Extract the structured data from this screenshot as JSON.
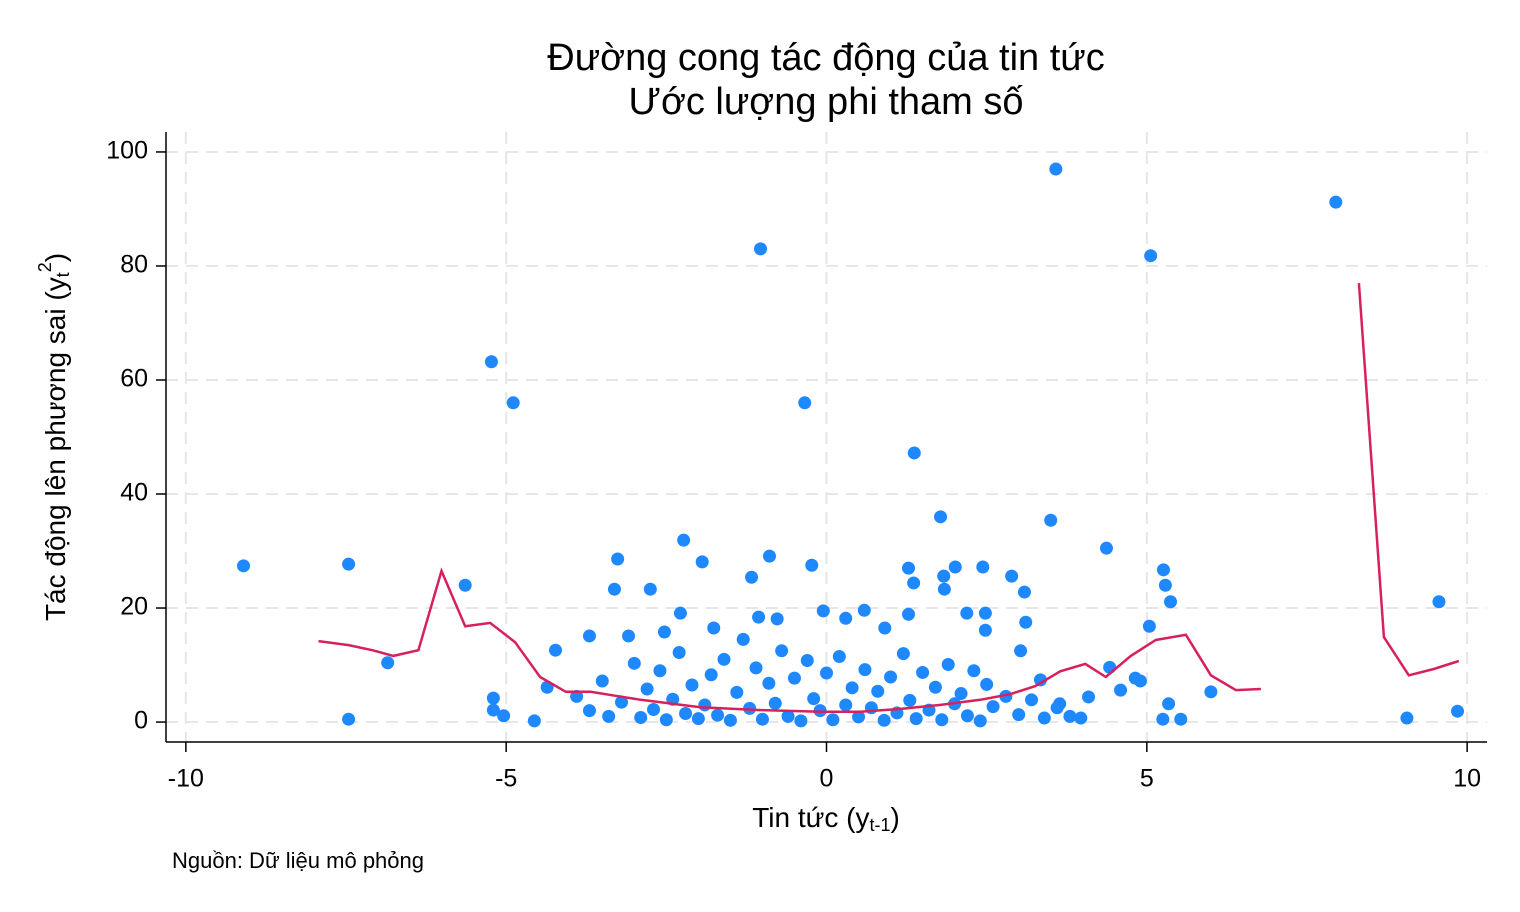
{
  "chart_data": {
    "type": "scatter",
    "title": "Đường cong tác động của tin tức",
    "subtitle": "Ước lượng phi tham số",
    "xlabel": {
      "text": "Tin tức (y",
      "sub": "t-1",
      "end": ")"
    },
    "ylabel": {
      "text": "Tác động lên phương sai (y",
      "sub": "t",
      "sup": "2",
      "end": ")"
    },
    "note": "Nguồn: Dữ liệu mô phỏng",
    "xlim": [
      -10.31,
      10.31
    ],
    "xticks": [
      -10,
      -5,
      0,
      5,
      10
    ],
    "ylim": [
      -3.5,
      103.5
    ],
    "yticks": [
      0,
      20,
      40,
      60,
      80,
      100
    ],
    "grid": true,
    "series": [
      {
        "type": "scatter",
        "color": "#1e88ff",
        "x": [
          -9.1,
          -7.46,
          -7.46,
          -6.85,
          -5.64,
          -5.23,
          -4.89,
          -5.2,
          -5.2,
          -5.04,
          -4.56,
          -4.36,
          -4.23,
          -3.26,
          -3.31,
          -3.7,
          -3.09,
          -2.75,
          -2.53,
          -2.23,
          -1.94,
          -2.28,
          -1.76,
          -1.03,
          -0.89,
          -1.17,
          -1.06,
          -0.77,
          -0.23,
          -0.34,
          -0.05,
          0.3,
          0.59,
          0.91,
          1.37,
          1.28,
          1.36,
          1.28,
          1.78,
          1.83,
          2.01,
          1.84,
          2.19,
          2.44,
          2.48,
          2.48,
          2.89,
          3.09,
          3.11,
          3.03,
          3.58,
          3.5,
          3.34,
          3.64,
          4.37,
          4.42,
          4.09,
          3.97,
          5.06,
          5.26,
          5.29,
          5.37,
          5.04,
          4.9,
          5.34,
          5.25,
          5.53,
          6.0,
          7.95,
          9.06,
          9.56,
          9.85,
          4.82,
          4.59,
          -3.9,
          -3.7,
          -3.5,
          -3.4,
          -3.2,
          -3.0,
          -2.9,
          -2.8,
          -2.7,
          -2.6,
          -2.5,
          -2.4,
          -2.3,
          -2.2,
          -2.1,
          -2.0,
          -1.9,
          -1.8,
          -1.7,
          -1.6,
          -1.5,
          -1.4,
          -1.3,
          -1.2,
          -1.1,
          -1.0,
          -0.9,
          -0.8,
          -0.7,
          -0.6,
          -0.5,
          -0.4,
          -0.3,
          -0.2,
          -0.1,
          0.0,
          0.1,
          0.2,
          0.3,
          0.4,
          0.5,
          0.6,
          0.7,
          0.8,
          0.9,
          1.0,
          1.1,
          1.2,
          1.3,
          1.4,
          1.5,
          1.6,
          1.7,
          1.8,
          1.9,
          2.0,
          2.1,
          2.2,
          2.3,
          2.4,
          2.5,
          2.6,
          2.8,
          3.0,
          3.2,
          3.4,
          3.6,
          3.8
        ],
        "values": [
          27.4,
          27.7,
          0.5,
          10.4,
          24.0,
          63.2,
          56.0,
          4.2,
          2.1,
          1.1,
          0.2,
          6.1,
          12.6,
          28.6,
          23.3,
          15.1,
          15.1,
          23.3,
          15.8,
          31.9,
          28.1,
          19.1,
          16.5,
          83.0,
          29.1,
          25.4,
          18.4,
          18.1,
          27.5,
          56.0,
          19.5,
          18.2,
          19.6,
          16.5,
          47.2,
          27.0,
          24.4,
          18.9,
          36.0,
          25.6,
          27.2,
          23.3,
          19.1,
          27.2,
          19.1,
          16.1,
          25.6,
          22.8,
          17.5,
          12.5,
          97.0,
          35.4,
          7.4,
          3.2,
          30.5,
          9.6,
          4.4,
          0.7,
          81.8,
          26.7,
          24.0,
          21.1,
          16.8,
          7.2,
          3.2,
          0.5,
          0.5,
          5.3,
          91.2,
          0.7,
          21.1,
          1.9,
          7.7,
          5.6,
          4.5,
          2.0,
          7.2,
          1.0,
          3.5,
          10.3,
          0.8,
          5.8,
          2.2,
          9.0,
          0.4,
          4.0,
          12.2,
          1.5,
          6.5,
          0.6,
          3.0,
          8.3,
          1.2,
          11.0,
          0.3,
          5.2,
          14.5,
          2.4,
          9.5,
          0.5,
          6.8,
          3.3,
          12.5,
          1.0,
          7.7,
          0.2,
          10.8,
          4.1,
          2.0,
          8.6,
          0.4,
          11.5,
          3.0,
          6.0,
          0.9,
          9.2,
          2.5,
          5.4,
          0.3,
          7.9,
          1.6,
          12.0,
          3.8,
          0.6,
          8.7,
          2.1,
          6.1,
          0.4,
          10.1,
          3.2,
          5.0,
          1.1,
          9.0,
          0.2,
          6.6,
          2.7,
          4.5,
          1.3,
          3.9,
          0.7,
          2.5,
          1.0
        ]
      },
      {
        "type": "line",
        "color": "#d6215c",
        "x": [
          -7.93,
          -7.46,
          -7.09,
          -6.76,
          -6.37,
          -6.01,
          -5.64,
          -5.25,
          -4.86,
          -4.47,
          -4.07,
          -3.68,
          -3.29,
          -2.9,
          -1.97,
          -1.03,
          -0.09,
          0.53,
          1.16,
          1.78,
          2.4,
          2.87,
          3.26,
          3.65,
          4.04,
          4.36,
          4.75,
          5.14,
          5.61,
          6.0,
          6.39,
          6.78,
          7.5,
          8.31,
          8.7,
          9.09,
          9.48,
          9.87
        ],
        "values": [
          14.2,
          13.5,
          12.6,
          11.6,
          12.6,
          26.5,
          16.8,
          17.4,
          14.0,
          7.9,
          5.3,
          5.3,
          4.6,
          3.9,
          2.6,
          2.1,
          1.8,
          1.8,
          2.3,
          3.0,
          3.9,
          4.9,
          6.3,
          8.9,
          10.2,
          7.9,
          11.6,
          14.4,
          15.3,
          8.2,
          5.6,
          5.8,
          null,
          77.0,
          14.9,
          8.2,
          9.3,
          10.7
        ]
      }
    ]
  }
}
